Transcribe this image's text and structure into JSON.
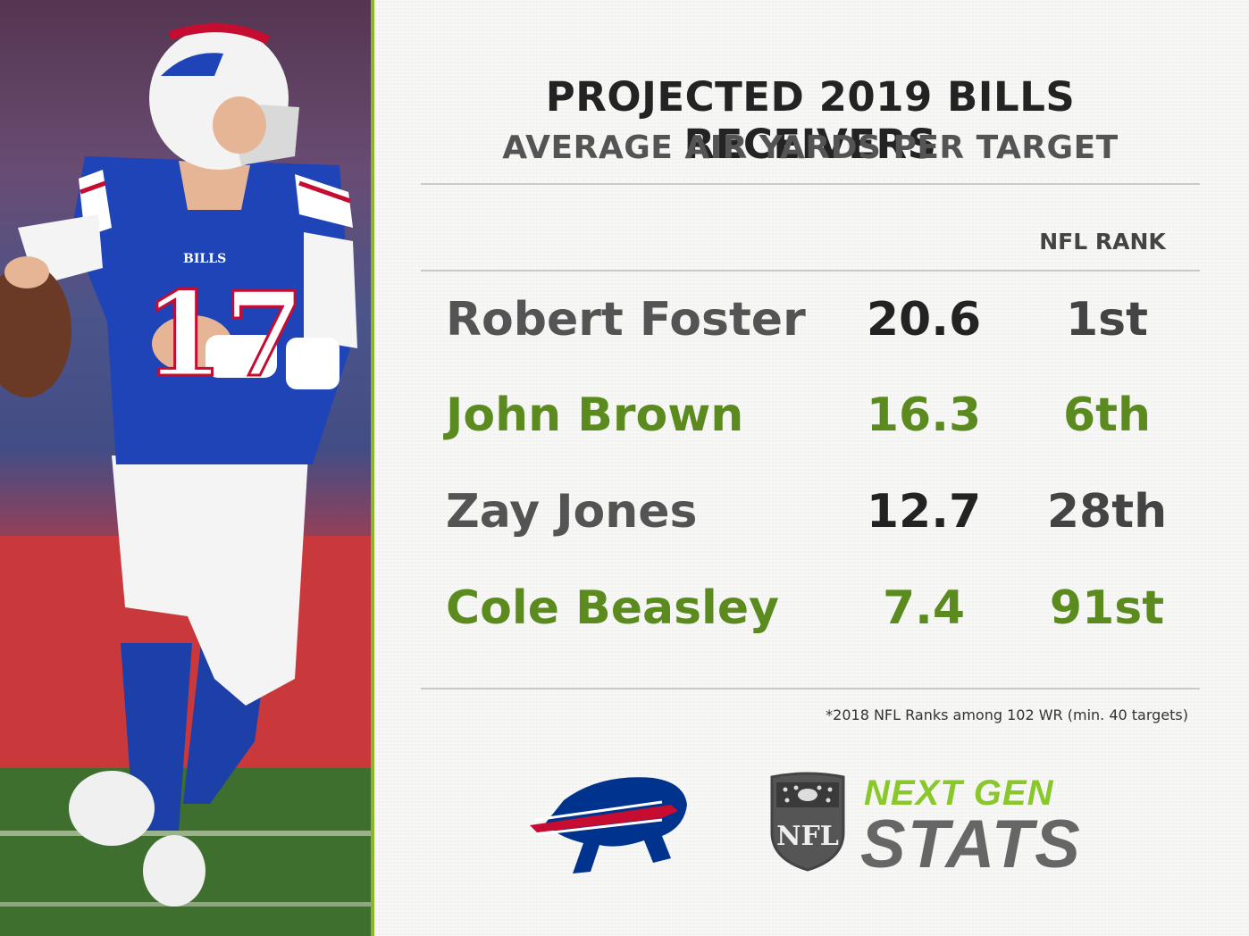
{
  "header": {
    "title": "PROJECTED 2019 BILLS RECEIVERS",
    "subtitle": "AVERAGE AIR YARDS PER TARGET",
    "rank_column": "NFL RANK"
  },
  "players": [
    {
      "name": "Robert Foster",
      "value": "20.6",
      "rank": "1st",
      "style": "gray"
    },
    {
      "name": "John Brown",
      "value": "16.3",
      "rank": "6th",
      "style": "green"
    },
    {
      "name": "Zay Jones",
      "value": "12.7",
      "rank": "28th",
      "style": "gray"
    },
    {
      "name": "Cole Beasley",
      "value": "7.4",
      "rank": "91st",
      "style": "green"
    }
  ],
  "footnote": "*2018 NFL Ranks among 102 WR (min. 40 targets)",
  "photo": {
    "jersey_number": "17",
    "jersey_team": "BILLS"
  },
  "logos": {
    "team": "bills-logo",
    "league": "NFL",
    "brand_top": "NEXT GEN",
    "brand_bottom": "STATS"
  },
  "colors": {
    "accent_green": "#5b8a1e",
    "brand_green": "#8ac72a",
    "bills_blue": "#00338d",
    "bills_red": "#c60c30",
    "text_dark": "#232323",
    "text_gray": "#545454"
  }
}
